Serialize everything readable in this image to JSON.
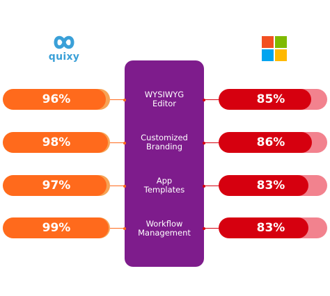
{
  "logos": {
    "left": {
      "wordmark": "quixy",
      "icon": "quixy-infinity-icon",
      "color": "#3aa0d8"
    },
    "right": {
      "icon": "microsoft-windows-icon",
      "colors": [
        "#f25022",
        "#7fba00",
        "#00a4ef",
        "#ffb900"
      ]
    }
  },
  "colors": {
    "center_panel": "#7e1c8c",
    "quixy_bar": "#ff6a1c",
    "quixy_bar_track": "#f6a355",
    "microsoft_bar": "#d6000f",
    "microsoft_bar_track": "#f2828e"
  },
  "rows": [
    {
      "feature": [
        "WYSIWYG",
        "Editor"
      ],
      "quixy": "96%",
      "quixy_value": 0.96,
      "microsoft": "85%",
      "microsoft_value": 0.85
    },
    {
      "feature": [
        "Customized",
        "Branding"
      ],
      "quixy": "98%",
      "quixy_value": 0.98,
      "microsoft": "86%",
      "microsoft_value": 0.86
    },
    {
      "feature": [
        "App",
        "Templates"
      ],
      "quixy": "97%",
      "quixy_value": 0.97,
      "microsoft": "83%",
      "microsoft_value": 0.83
    },
    {
      "feature": [
        "Workflow",
        "Management"
      ],
      "quixy": "99%",
      "quixy_value": 0.99,
      "microsoft": "83%",
      "microsoft_value": 0.83
    }
  ]
}
